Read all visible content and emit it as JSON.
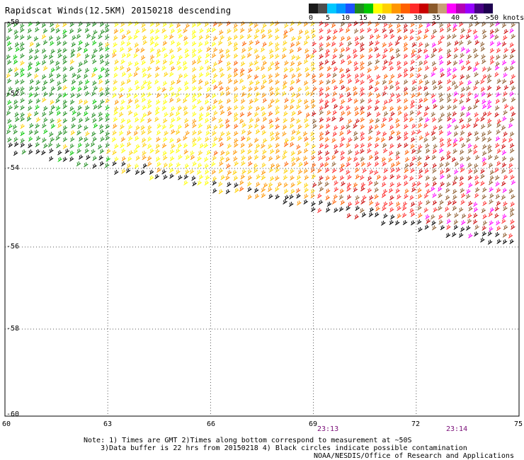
{
  "title": "Rapidscat Winds(12.5KM) 20150218 descending",
  "colorbar": {
    "labels": [
      "0",
      "5",
      "10",
      "15",
      "20",
      "25",
      "30",
      "35",
      "40",
      "45",
      ">50 knots"
    ],
    "colors": [
      "#1a1a1a",
      "#4d4d4d",
      "#00c8ff",
      "#0096ff",
      "#1e50ff",
      "#1e8c1e",
      "#00c800",
      "#ffff00",
      "#ffd000",
      "#ff9600",
      "#ff6000",
      "#ff2a2a",
      "#c80000",
      "#8b5a2b",
      "#c8a078",
      "#ff00ff",
      "#b400b4",
      "#9600ff",
      "#460082",
      "#1e0050"
    ]
  },
  "map": {
    "lon_ticks": [
      "60",
      "63",
      "66",
      "69",
      "72",
      "75"
    ],
    "lat_ticks": [
      "-50",
      "-52",
      "-54",
      "-56",
      "-58",
      "-60"
    ],
    "lon_range": [
      60,
      75
    ],
    "lat_range": [
      -50,
      -60
    ]
  },
  "times": [
    "23:13",
    "23:14"
  ],
  "notes": [
    "Note: 1) Times are GMT 2)Times along bottom correspond to measurement at ~50S",
    "3)Data buffer is 22 hrs from 20150218 4) Black circles indicate possible contamination",
    "NOAA/NESDIS/Office of Research and Applications"
  ],
  "wind_speed_bands_knots": {
    "west_green": "15-20",
    "center_yellow": "20-25",
    "center_orange": "25-30",
    "east_red": "30-35",
    "east_brown": "35-40",
    "east_magenta": "40-45"
  }
}
